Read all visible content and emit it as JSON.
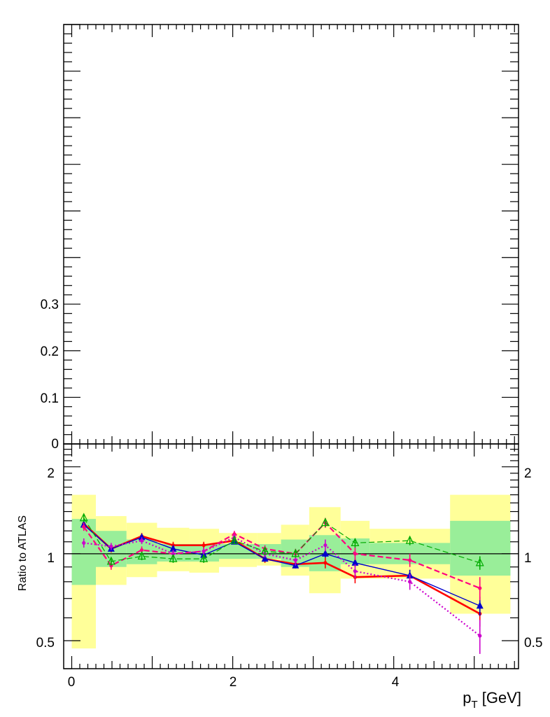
{
  "chart_data": [
    {
      "type": "line",
      "panel": "main",
      "ylim": [
        0,
        0.9
      ],
      "xlim": [
        -0.1,
        5.55
      ],
      "y_ticks": [
        0.1,
        0.2,
        0.3
      ],
      "y_tick_labels": [
        "0.1",
        "0.2",
        "0.3"
      ],
      "y_zero_label": "0",
      "series": []
    },
    {
      "type": "line",
      "panel": "ratio",
      "ylabel": "Ratio to ATLAS",
      "xlabel": "p_T [GeV]",
      "xlabel_main": "p",
      "xlabel_sub": "T",
      "xlabel_rest": " [GeV]",
      "xlim": [
        -0.1,
        5.55
      ],
      "ylim": [
        0.4,
        2.4
      ],
      "log_y": true,
      "x_ticks": [
        0,
        2,
        4
      ],
      "x_tick_labels": [
        "0",
        "2",
        "4"
      ],
      "y_ticks": [
        0.5,
        1,
        2
      ],
      "y_tick_labels": [
        "0.5",
        "1",
        "2"
      ],
      "reference_line": 1,
      "bins": [
        {
          "x": [
            0.0,
            0.3
          ],
          "yellow": [
            0.47,
            1.6
          ],
          "green": [
            0.78,
            1.32
          ]
        },
        {
          "x": [
            0.3,
            0.68
          ],
          "yellow": [
            0.78,
            1.35
          ],
          "green": [
            0.9,
            1.2
          ]
        },
        {
          "x": [
            0.68,
            1.06
          ],
          "yellow": [
            0.83,
            1.28
          ],
          "green": [
            0.92,
            1.12
          ]
        },
        {
          "x": [
            1.06,
            1.46
          ],
          "yellow": [
            0.87,
            1.23
          ],
          "green": [
            0.94,
            1.08
          ]
        },
        {
          "x": [
            1.46,
            1.83
          ],
          "yellow": [
            0.86,
            1.22
          ],
          "green": [
            0.94,
            1.08
          ]
        },
        {
          "x": [
            1.83,
            2.3
          ],
          "yellow": [
            0.9,
            1.18
          ],
          "green": [
            0.96,
            1.08
          ]
        },
        {
          "x": [
            2.3,
            2.6
          ],
          "yellow": [
            0.91,
            1.18
          ],
          "green": [
            0.96,
            1.08
          ]
        },
        {
          "x": [
            2.6,
            2.95
          ],
          "yellow": [
            0.84,
            1.26
          ],
          "green": [
            0.9,
            1.12
          ]
        },
        {
          "x": [
            2.95,
            3.34
          ],
          "yellow": [
            0.73,
            1.45
          ],
          "green": [
            0.87,
            1.16
          ]
        },
        {
          "x": [
            3.34,
            3.7
          ],
          "yellow": [
            0.82,
            1.3
          ],
          "green": [
            0.92,
            1.13
          ]
        },
        {
          "x": [
            3.7,
            4.7
          ],
          "yellow": [
            0.82,
            1.22
          ],
          "green": [
            0.92,
            1.09
          ]
        },
        {
          "x": [
            4.7,
            5.45
          ],
          "yellow": [
            0.62,
            1.6
          ],
          "green": [
            0.84,
            1.3
          ]
        }
      ],
      "series": [
        {
          "color": "#ff0000",
          "style": "solid",
          "width": 2.6,
          "marker": "circle",
          "x": [
            0.15,
            0.49,
            0.87,
            1.26,
            1.64,
            2.02,
            2.4,
            2.78,
            3.15,
            3.52,
            4.2,
            5.07
          ],
          "y": [
            1.27,
            1.04,
            1.15,
            1.07,
            1.07,
            1.11,
            0.96,
            0.92,
            0.93,
            0.83,
            0.84,
            0.62
          ],
          "err": [
            0.04,
            0.03,
            0.03,
            0.03,
            0.03,
            0.03,
            0.03,
            0.03,
            0.04,
            0.04,
            0.04,
            0.06
          ]
        },
        {
          "color": "#0000cc",
          "style": "solid",
          "width": 1.4,
          "marker": "triangle",
          "x": [
            0.15,
            0.49,
            0.87,
            1.26,
            1.64,
            2.02,
            2.4,
            2.78,
            3.15,
            3.52,
            4.2,
            5.07
          ],
          "y": [
            1.26,
            1.04,
            1.14,
            1.04,
            0.99,
            1.1,
            0.96,
            0.91,
            1.0,
            0.93,
            0.84,
            0.66
          ],
          "err": [
            0.03,
            0.02,
            0.02,
            0.02,
            0.02,
            0.02,
            0.02,
            0.02,
            0.03,
            0.03,
            0.04,
            0.05
          ]
        },
        {
          "color": "#ff0080",
          "style": "dashed",
          "width": 2.2,
          "marker": "circle",
          "x": [
            0.15,
            0.49,
            0.87,
            1.26,
            1.64,
            2.02,
            2.4,
            2.78,
            3.15,
            3.52,
            4.2,
            5.07
          ],
          "y": [
            1.24,
            0.91,
            1.03,
            1.0,
            1.02,
            1.17,
            1.04,
            1.0,
            1.28,
            1.0,
            0.95,
            0.76
          ],
          "err": [
            0.04,
            0.03,
            0.03,
            0.03,
            0.03,
            0.03,
            0.03,
            0.04,
            0.05,
            0.05,
            0.05,
            0.07
          ]
        },
        {
          "color": "#cc00cc",
          "style": "dotted",
          "width": 2.2,
          "marker": "circle",
          "x": [
            0.15,
            0.49,
            0.87,
            1.26,
            1.64,
            2.02,
            2.4,
            2.78,
            3.15,
            3.52,
            4.2,
            5.07
          ],
          "y": [
            1.09,
            1.06,
            1.11,
            1.0,
            1.02,
            1.14,
            1.0,
            0.95,
            1.07,
            0.87,
            0.8,
            0.52
          ],
          "err": [
            0.04,
            0.03,
            0.03,
            0.03,
            0.03,
            0.03,
            0.03,
            0.04,
            0.05,
            0.05,
            0.05,
            0.07
          ]
        },
        {
          "color": "#00aa00",
          "style": "dashed",
          "width": 1.2,
          "marker": "open-triangle",
          "x": [
            0.15,
            0.49,
            0.87,
            1.26,
            1.64,
            2.02,
            2.4,
            2.78,
            3.15,
            3.52,
            4.2,
            5.07
          ],
          "y": [
            1.33,
            0.94,
            0.98,
            0.96,
            0.96,
            1.11,
            1.02,
            1.0,
            1.28,
            1.09,
            1.11,
            0.93
          ],
          "err": [
            0.04,
            0.03,
            0.03,
            0.03,
            0.03,
            0.03,
            0.03,
            0.03,
            0.04,
            0.04,
            0.04,
            0.05
          ]
        }
      ]
    }
  ],
  "colors": {
    "yellow_band": "#ffff99",
    "green_band": "#99ee99"
  }
}
